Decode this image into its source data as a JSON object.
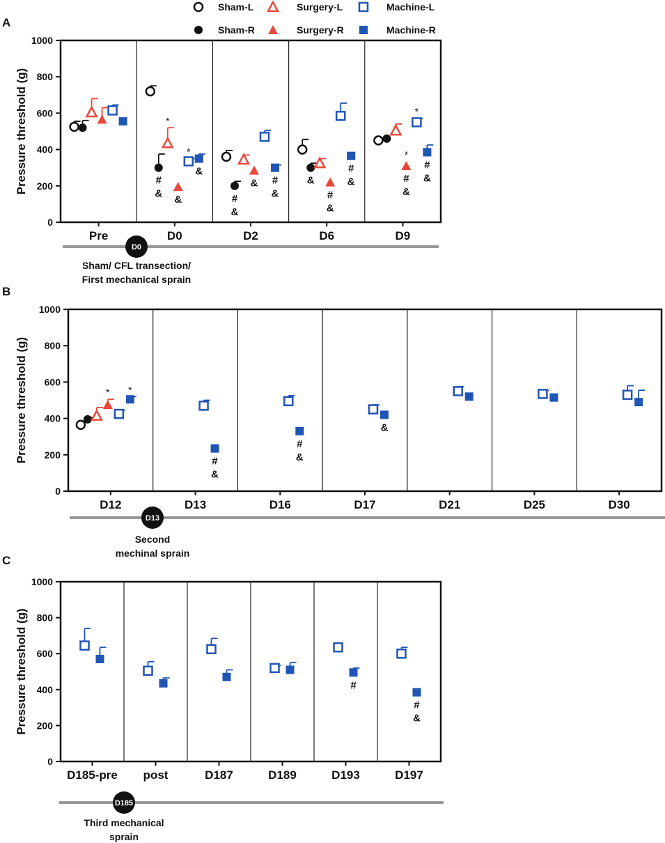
{
  "legend": {
    "items": [
      {
        "name": "Sham-L",
        "marker": "circle-open",
        "color": "#111111"
      },
      {
        "name": "Surgery-L",
        "marker": "triangle-open",
        "color": "#e8483a"
      },
      {
        "name": "Machine-L",
        "marker": "square-open",
        "color": "#1f55b5"
      },
      {
        "name": "Sham-R",
        "marker": "circle-filled",
        "color": "#111111"
      },
      {
        "name": "Surgery-R",
        "marker": "triangle-filled",
        "color": "#e8483a"
      },
      {
        "name": "Machine-R",
        "marker": "square-filled",
        "color": "#1f55b5"
      }
    ]
  },
  "chart_data": [
    {
      "panel": "A",
      "type": "scatter",
      "ylabel": "Pressure threshold (g)",
      "ylim": [
        0,
        1000
      ],
      "yticks": [
        0,
        200,
        400,
        600,
        800,
        1000
      ],
      "categories": [
        "Pre",
        "D0",
        "D2",
        "D6",
        "D9"
      ],
      "points": [
        {
          "cat": "Pre",
          "series": "Sham-L",
          "slot": 0,
          "value": 525,
          "err": 30,
          "ann": []
        },
        {
          "cat": "Pre",
          "series": "Sham-R",
          "slot": 1,
          "value": 520,
          "err": 40,
          "ann": []
        },
        {
          "cat": "Pre",
          "series": "Surgery-L",
          "slot": 2,
          "value": 605,
          "err": 75,
          "ann": []
        },
        {
          "cat": "Pre",
          "series": "Surgery-R",
          "slot": 3,
          "value": 565,
          "err": 65,
          "ann": []
        },
        {
          "cat": "Pre",
          "series": "Machine-L",
          "slot": 4,
          "value": 615,
          "err": 30,
          "ann": []
        },
        {
          "cat": "Pre",
          "series": "Machine-R",
          "slot": 5,
          "value": 555,
          "err": 0,
          "ann": []
        },
        {
          "cat": "D0",
          "series": "Sham-L",
          "slot": 0,
          "value": 720,
          "err": 30,
          "ann": []
        },
        {
          "cat": "D0",
          "series": "Sham-R",
          "slot": 1,
          "value": 300,
          "err": 75,
          "ann": [
            "#",
            "&"
          ]
        },
        {
          "cat": "D0",
          "series": "Surgery-L",
          "slot": 2,
          "value": 435,
          "err": 85,
          "ann": [
            "*"
          ]
        },
        {
          "cat": "D0",
          "series": "Surgery-R",
          "slot": 3,
          "value": 195,
          "err": 0,
          "ann": [
            "&"
          ]
        },
        {
          "cat": "D0",
          "series": "Machine-L",
          "slot": 4,
          "value": 335,
          "err": 15,
          "ann": [
            "*"
          ]
        },
        {
          "cat": "D0",
          "series": "Machine-R",
          "slot": 5,
          "value": 350,
          "err": 25,
          "ann": [
            "&"
          ]
        },
        {
          "cat": "D2",
          "series": "Sham-L",
          "slot": 0,
          "value": 360,
          "err": 35,
          "ann": []
        },
        {
          "cat": "D2",
          "series": "Sham-R",
          "slot": 1,
          "value": 200,
          "err": 25,
          "ann": [
            "#",
            "&"
          ]
        },
        {
          "cat": "D2",
          "series": "Surgery-L",
          "slot": 2,
          "value": 345,
          "err": 25,
          "ann": []
        },
        {
          "cat": "D2",
          "series": "Surgery-R",
          "slot": 3,
          "value": 285,
          "err": 0,
          "ann": [
            "&"
          ]
        },
        {
          "cat": "D2",
          "series": "Machine-L",
          "slot": 4,
          "value": 470,
          "err": 35,
          "ann": []
        },
        {
          "cat": "D2",
          "series": "Machine-R",
          "slot": 5,
          "value": 300,
          "err": 15,
          "ann": [
            "#",
            "&"
          ]
        },
        {
          "cat": "D6",
          "series": "Sham-L",
          "slot": 0,
          "value": 400,
          "err": 55,
          "ann": []
        },
        {
          "cat": "D6",
          "series": "Sham-R",
          "slot": 1,
          "value": 300,
          "err": 25,
          "ann": [
            "&"
          ]
        },
        {
          "cat": "D6",
          "series": "Surgery-L",
          "slot": 2,
          "value": 325,
          "err": 25,
          "ann": []
        },
        {
          "cat": "D6",
          "series": "Surgery-R",
          "slot": 3,
          "value": 220,
          "err": 0,
          "ann": [
            "#",
            "&"
          ]
        },
        {
          "cat": "D6",
          "series": "Machine-L",
          "slot": 4,
          "value": 585,
          "err": 70,
          "ann": []
        },
        {
          "cat": "D6",
          "series": "Machine-R",
          "slot": 5,
          "value": 365,
          "err": 0,
          "ann": [
            "#",
            "&"
          ]
        },
        {
          "cat": "D9",
          "series": "Sham-L",
          "slot": 0,
          "value": 450,
          "err": 0,
          "ann": []
        },
        {
          "cat": "D9",
          "series": "Sham-R",
          "slot": 1,
          "value": 460,
          "err": 0,
          "ann": []
        },
        {
          "cat": "D9",
          "series": "Surgery-L",
          "slot": 2,
          "value": 505,
          "err": 35,
          "ann": []
        },
        {
          "cat": "D9",
          "series": "Surgery-R",
          "slot": 3,
          "value": 310,
          "err": 0,
          "ann": [
            "*",
            "#",
            "&"
          ]
        },
        {
          "cat": "D9",
          "series": "Machine-L",
          "slot": 4,
          "value": 550,
          "err": 20,
          "ann": [
            "*"
          ]
        },
        {
          "cat": "D9",
          "series": "Machine-R",
          "slot": 5,
          "value": 385,
          "err": 40,
          "ann": [
            "#",
            "&"
          ]
        }
      ],
      "timeline": {
        "marker": "D0",
        "caption": [
          "Sham/ CFL transection/",
          "First mechanical sprain"
        ]
      }
    },
    {
      "panel": "B",
      "type": "scatter",
      "ylabel": "Pressure threshold (g)",
      "ylim": [
        0,
        1000
      ],
      "yticks": [
        0,
        200,
        400,
        600,
        800,
        1000
      ],
      "categories": [
        "D12",
        "D13",
        "D16",
        "D17",
        "D21",
        "D25",
        "D30"
      ],
      "points": [
        {
          "cat": "D12",
          "series": "Sham-L",
          "slot": 0,
          "value": 365,
          "err": 15,
          "ann": []
        },
        {
          "cat": "D12",
          "series": "Sham-R",
          "slot": 1,
          "value": 395,
          "err": 10,
          "ann": []
        },
        {
          "cat": "D12",
          "series": "Surgery-L",
          "slot": 2,
          "value": 415,
          "err": 45,
          "ann": []
        },
        {
          "cat": "D12",
          "series": "Surgery-R",
          "slot": 3,
          "value": 475,
          "err": 30,
          "ann": [
            "*"
          ]
        },
        {
          "cat": "D12",
          "series": "Machine-L",
          "slot": 4,
          "value": 425,
          "err": 20,
          "ann": []
        },
        {
          "cat": "D12",
          "series": "Machine-R",
          "slot": 5,
          "value": 505,
          "err": 15,
          "ann": [
            "*"
          ]
        },
        {
          "cat": "D13",
          "series": "Machine-L",
          "slot": 4,
          "value": 470,
          "err": 30,
          "ann": []
        },
        {
          "cat": "D13",
          "series": "Machine-R",
          "slot": 5,
          "value": 235,
          "err": 0,
          "ann": [
            "#",
            "&"
          ]
        },
        {
          "cat": "D16",
          "series": "Machine-L",
          "slot": 4,
          "value": 495,
          "err": 30,
          "ann": []
        },
        {
          "cat": "D16",
          "series": "Machine-R",
          "slot": 5,
          "value": 330,
          "err": 0,
          "ann": [
            "#",
            "&"
          ]
        },
        {
          "cat": "D17",
          "series": "Machine-L",
          "slot": 4,
          "value": 450,
          "err": 25,
          "ann": []
        },
        {
          "cat": "D17",
          "series": "Machine-R",
          "slot": 5,
          "value": 420,
          "err": 0,
          "ann": [
            "&"
          ]
        },
        {
          "cat": "D21",
          "series": "Machine-L",
          "slot": 4,
          "value": 550,
          "err": 25,
          "ann": []
        },
        {
          "cat": "D21",
          "series": "Machine-R",
          "slot": 5,
          "value": 520,
          "err": 0,
          "ann": []
        },
        {
          "cat": "D25",
          "series": "Machine-L",
          "slot": 4,
          "value": 535,
          "err": 20,
          "ann": []
        },
        {
          "cat": "D25",
          "series": "Machine-R",
          "slot": 5,
          "value": 515,
          "err": 0,
          "ann": []
        },
        {
          "cat": "D30",
          "series": "Machine-L",
          "slot": 4,
          "value": 530,
          "err": 50,
          "ann": []
        },
        {
          "cat": "D30",
          "series": "Machine-R",
          "slot": 5,
          "value": 490,
          "err": 65,
          "ann": []
        }
      ],
      "timeline": {
        "marker": "D13",
        "caption": [
          "Second",
          "mechinal sprain"
        ]
      }
    },
    {
      "panel": "C",
      "type": "scatter",
      "ylabel": "Pressure threshold (g)",
      "ylim": [
        0,
        1000
      ],
      "yticks": [
        0,
        200,
        400,
        600,
        800,
        1000
      ],
      "categories": [
        "D185-pre",
        "post",
        "D187",
        "D189",
        "D193",
        "D197"
      ],
      "points": [
        {
          "cat": "D185-pre",
          "series": "Machine-L",
          "slot": 4,
          "value": 645,
          "err": 95,
          "ann": []
        },
        {
          "cat": "D185-pre",
          "series": "Machine-R",
          "slot": 5,
          "value": 570,
          "err": 65,
          "ann": []
        },
        {
          "cat": "post",
          "series": "Machine-L",
          "slot": 4,
          "value": 505,
          "err": 50,
          "ann": []
        },
        {
          "cat": "post",
          "series": "Machine-R",
          "slot": 5,
          "value": 435,
          "err": 30,
          "ann": []
        },
        {
          "cat": "D187",
          "series": "Machine-L",
          "slot": 4,
          "value": 625,
          "err": 60,
          "ann": []
        },
        {
          "cat": "D187",
          "series": "Machine-R",
          "slot": 5,
          "value": 470,
          "err": 40,
          "ann": []
        },
        {
          "cat": "D189",
          "series": "Machine-L",
          "slot": 4,
          "value": 520,
          "err": 15,
          "ann": []
        },
        {
          "cat": "D189",
          "series": "Machine-R",
          "slot": 5,
          "value": 510,
          "err": 40,
          "ann": []
        },
        {
          "cat": "D193",
          "series": "Machine-L",
          "slot": 4,
          "value": 635,
          "err": 0,
          "ann": []
        },
        {
          "cat": "D193",
          "series": "Machine-R",
          "slot": 5,
          "value": 495,
          "err": 25,
          "ann": [
            "#"
          ]
        },
        {
          "cat": "D197",
          "series": "Machine-L",
          "slot": 4,
          "value": 600,
          "err": 35,
          "ann": []
        },
        {
          "cat": "D197",
          "series": "Machine-R",
          "slot": 5,
          "value": 385,
          "err": 0,
          "ann": [
            "#",
            "&"
          ]
        }
      ],
      "timeline": {
        "marker": "D185",
        "caption": [
          "Third mechanical",
          "sprain"
        ]
      }
    }
  ]
}
